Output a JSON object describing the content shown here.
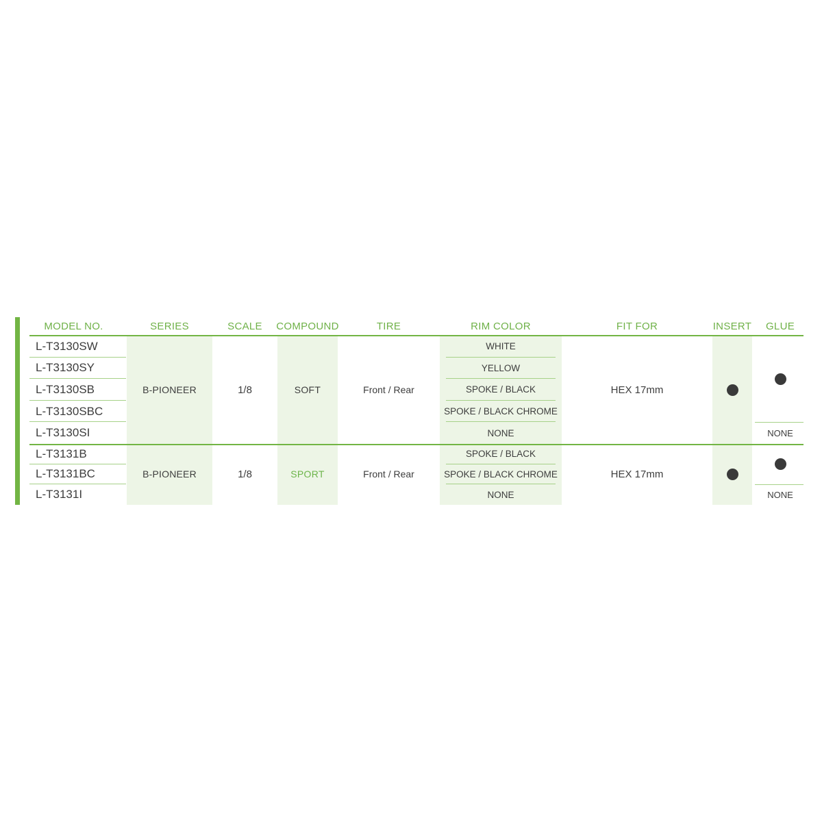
{
  "table": {
    "headers": [
      "MODEL NO.",
      "SERIES",
      "SCALE",
      "COMPOUND",
      "TIRE",
      "RIM COLOR",
      "FIT FOR",
      "INSERT",
      "GLUE"
    ],
    "groups": [
      {
        "models": [
          "L-T3130SW",
          "L-T3130SY",
          "L-T3130SB",
          "L-T3130SBC",
          "L-T3130SI"
        ],
        "series": "B-PIONEER",
        "scale": "1/8",
        "compound": "SOFT",
        "tire": "Front / Rear",
        "rim_colors": [
          "WHITE",
          "YELLOW",
          "SPOKE / BLACK",
          "SPOKE / BLACK CHROME",
          "NONE"
        ],
        "fit_for": "HEX 17mm",
        "insert_marker": "dot",
        "glue_marker": "dot",
        "glue_none": "NONE"
      },
      {
        "models": [
          "L-T3131B",
          "L-T3131BC",
          "L-T3131I"
        ],
        "series": "B-PIONEER",
        "scale": "1/8",
        "compound": "SPORT",
        "tire": "Front / Rear",
        "rim_colors": [
          "SPOKE / BLACK",
          "SPOKE / BLACK CHROME",
          "NONE"
        ],
        "fit_for": "HEX 17mm",
        "insert_marker": "dot",
        "glue_marker": "dot",
        "glue_none": "NONE"
      }
    ],
    "colors": {
      "accent_green": "#72b544",
      "header_text_green": "#6fb148",
      "light_band_green": "#edf5e6",
      "thin_line_green": "#a6d188",
      "body_text": "#3d3d3d",
      "dot": "#3a3a3a"
    }
  }
}
